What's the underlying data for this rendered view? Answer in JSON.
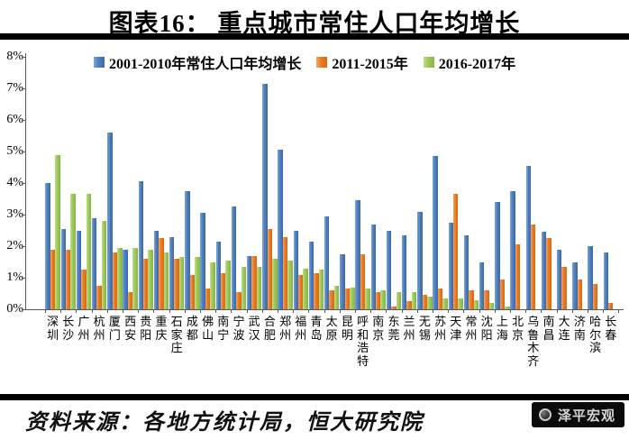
{
  "title": "图表16： 重点城市常住人口年均增长",
  "y_axis": {
    "labels": [
      "8%",
      "7%",
      "6%",
      "5%",
      "4%",
      "3%",
      "2%",
      "1%",
      "0%"
    ],
    "max": 8,
    "tick_step": 1
  },
  "chart_data": {
    "type": "bar",
    "title": "图表16： 重点城市常住人口年均增长",
    "xlabel": "",
    "ylabel": "",
    "ylim": [
      0,
      8
    ],
    "grid": false,
    "legend_position": "top-left-inside",
    "categories": [
      "深圳",
      "长沙",
      "广州",
      "杭州",
      "厦门",
      "西安",
      "贵阳",
      "重庆",
      "石家庄",
      "成都",
      "佛山",
      "南宁",
      "宁波",
      "武汉",
      "合肥",
      "郑州",
      "福州",
      "青岛",
      "太原",
      "昆明",
      "呼和浩特",
      "南京",
      "东莞",
      "兰州",
      "无锡",
      "苏州",
      "天津",
      "常州",
      "沈阳",
      "上海",
      "北京",
      "乌鲁木齐",
      "南昌",
      "大连",
      "济南",
      "哈尔滨",
      "长春"
    ],
    "series": [
      {
        "name": "2001-2010年常住人口年均增长",
        "color": "#4E80BC",
        "values": [
          4.0,
          2.55,
          2.5,
          2.9,
          5.6,
          1.9,
          4.05,
          2.5,
          2.3,
          3.75,
          3.05,
          2.15,
          3.25,
          1.7,
          7.15,
          5.05,
          2.5,
          2.15,
          2.95,
          1.75,
          3.45,
          2.7,
          2.5,
          2.35,
          3.1,
          4.85,
          2.75,
          2.35,
          1.5,
          3.4,
          3.75,
          4.55,
          2.45,
          1.9,
          1.5,
          2.0,
          1.8
        ]
      },
      {
        "name": "2011-2015年",
        "color": "#E97A25",
        "values": [
          1.9,
          1.9,
          1.25,
          0.75,
          1.8,
          0.55,
          1.6,
          2.25,
          1.6,
          1.1,
          0.65,
          1.15,
          0.55,
          1.7,
          2.55,
          2.3,
          1.1,
          1.15,
          0.6,
          0.65,
          1.75,
          0.55,
          0.1,
          0.25,
          0.45,
          0.65,
          3.65,
          0.6,
          0.6,
          0.95,
          2.05,
          2.7,
          2.25,
          1.35,
          0.95,
          0.8,
          0.2
        ]
      },
      {
        "name": "2016-2017年",
        "color": "#9DC85A",
        "values": [
          4.9,
          3.65,
          3.65,
          2.8,
          1.95,
          1.95,
          1.9,
          1.8,
          1.65,
          1.65,
          1.5,
          1.55,
          1.35,
          1.35,
          1.6,
          1.55,
          1.3,
          1.25,
          0.75,
          0.7,
          0.65,
          0.6,
          0.55,
          0.55,
          0.4,
          0.35,
          0.35,
          0.3,
          0.2,
          0.1,
          0,
          0,
          0,
          0,
          0,
          0,
          0
        ]
      }
    ]
  },
  "footer": {
    "source": "资料来源：各地方统计局，恒大研究院",
    "brand": "泽平宏观"
  }
}
